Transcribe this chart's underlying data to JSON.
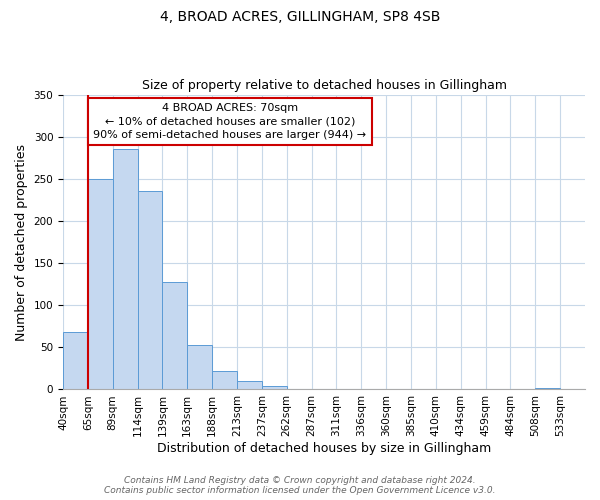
{
  "title": "4, BROAD ACRES, GILLINGHAM, SP8 4SB",
  "subtitle": "Size of property relative to detached houses in Gillingham",
  "xlabel": "Distribution of detached houses by size in Gillingham",
  "ylabel": "Number of detached properties",
  "bin_labels": [
    "40sqm",
    "65sqm",
    "89sqm",
    "114sqm",
    "139sqm",
    "163sqm",
    "188sqm",
    "213sqm",
    "237sqm",
    "262sqm",
    "287sqm",
    "311sqm",
    "336sqm",
    "360sqm",
    "385sqm",
    "410sqm",
    "434sqm",
    "459sqm",
    "484sqm",
    "508sqm",
    "533sqm"
  ],
  "bar_values": [
    68,
    250,
    285,
    235,
    128,
    53,
    22,
    10,
    4,
    0,
    0,
    0,
    0,
    0,
    0,
    0,
    0,
    0,
    0,
    2,
    0
  ],
  "bar_color": "#c5d8f0",
  "bar_edge_color": "#5b9bd5",
  "vline_x": 1,
  "vline_color": "#cc0000",
  "ylim": [
    0,
    350
  ],
  "yticks": [
    0,
    50,
    100,
    150,
    200,
    250,
    300,
    350
  ],
  "annotation_text": "4 BROAD ACRES: 70sqm\n← 10% of detached houses are smaller (102)\n90% of semi-detached houses are larger (944) →",
  "annotation_box_color": "#ffffff",
  "annotation_box_edge": "#cc0000",
  "footer_line1": "Contains HM Land Registry data © Crown copyright and database right 2024.",
  "footer_line2": "Contains public sector information licensed under the Open Government Licence v3.0.",
  "bg_color": "#ffffff",
  "grid_color": "#c8d8e8",
  "title_fontsize": 10,
  "subtitle_fontsize": 9,
  "axis_label_fontsize": 9,
  "tick_fontsize": 7.5,
  "footer_fontsize": 6.5,
  "annotation_fontsize": 8
}
